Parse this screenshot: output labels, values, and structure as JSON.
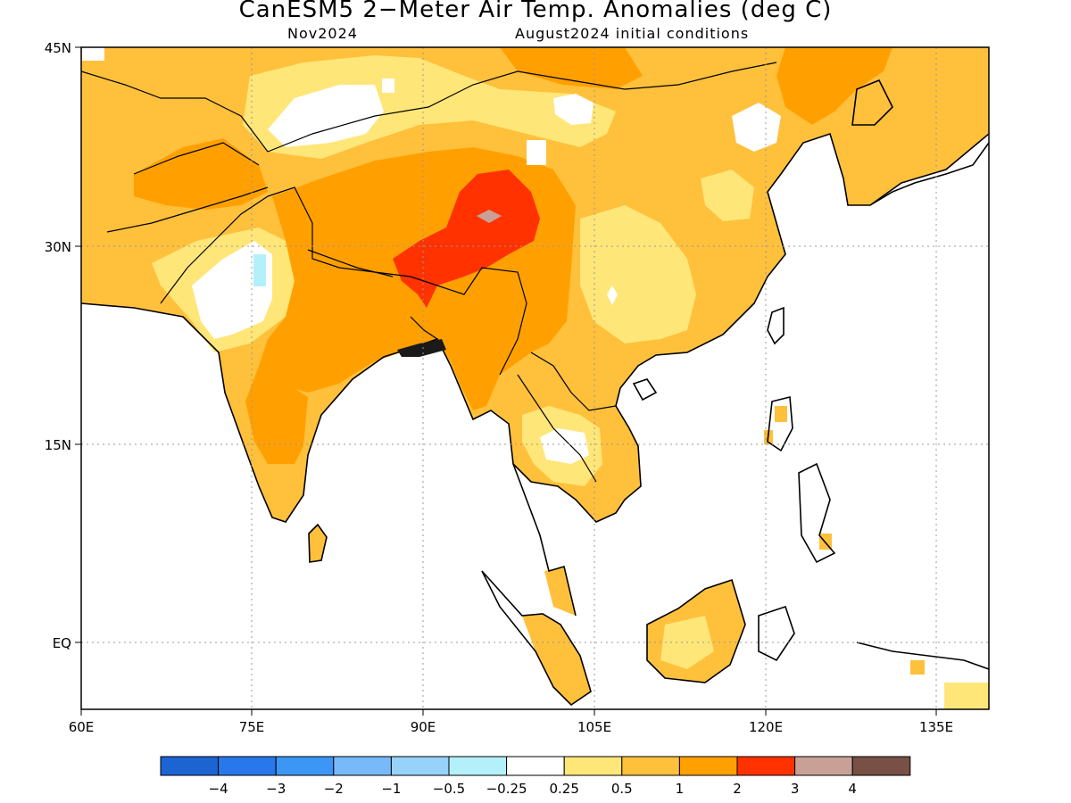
{
  "title": "CanESM5 2−Meter Air Temp. Anomalies (deg C)",
  "subtitle_left": "Nov2024",
  "subtitle_right": "August2024 initial conditions",
  "map": {
    "lon_range": [
      60,
      140
    ],
    "lat_range": [
      -6,
      45
    ],
    "lat_ticks": [
      {
        "value": 45,
        "label": "45N"
      },
      {
        "value": 30,
        "label": "30N"
      },
      {
        "value": 15,
        "label": "15N"
      },
      {
        "value": 0,
        "label": "EQ"
      }
    ],
    "lon_ticks": [
      {
        "value": 60,
        "label": "60E"
      },
      {
        "value": 75,
        "label": "75E"
      },
      {
        "value": 90,
        "label": "90E"
      },
      {
        "value": 105,
        "label": "105E"
      },
      {
        "value": 120,
        "label": "120E"
      },
      {
        "value": 135,
        "label": "135E"
      }
    ],
    "grid": "dotted",
    "max_anomaly_region": "Tibetan Plateau",
    "peak_anomaly_range": "2 to 3"
  },
  "colorbar": {
    "colors": [
      "#1c64d2",
      "#2878eb",
      "#3c96f5",
      "#78b9fa",
      "#96d2fa",
      "#b4f0fa",
      "#ffffff",
      "#ffe678",
      "#ffc03c",
      "#ffa000",
      "#ff3200",
      "#c8a096",
      "#785046"
    ],
    "boundaries": [
      "−4",
      "−3",
      "−2",
      "−1",
      "−0.5",
      "−0.25",
      "0.25",
      "0.5",
      "1",
      "2",
      "3",
      "4"
    ]
  }
}
